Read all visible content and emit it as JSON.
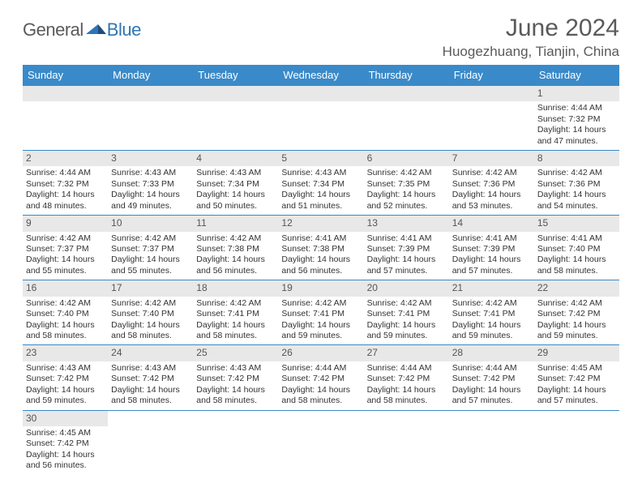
{
  "brand": {
    "part1": "General",
    "part2": "Blue"
  },
  "title": "June 2024",
  "location": "Huogezhuang, Tianjin, China",
  "colors": {
    "header_bg": "#3a8ac9",
    "header_text": "#ffffff",
    "daynum_bg": "#e8e8e8",
    "row_border": "#3a8ac9",
    "title_color": "#5a5a5a",
    "brand_gray": "#5a5a5a",
    "brand_blue": "#2e75b6"
  },
  "weekdays": [
    "Sunday",
    "Monday",
    "Tuesday",
    "Wednesday",
    "Thursday",
    "Friday",
    "Saturday"
  ],
  "weeks": [
    [
      null,
      null,
      null,
      null,
      null,
      null,
      {
        "n": "1",
        "sr": "Sunrise: 4:44 AM",
        "ss": "Sunset: 7:32 PM",
        "dl": "Daylight: 14 hours and 47 minutes."
      }
    ],
    [
      {
        "n": "2",
        "sr": "Sunrise: 4:44 AM",
        "ss": "Sunset: 7:32 PM",
        "dl": "Daylight: 14 hours and 48 minutes."
      },
      {
        "n": "3",
        "sr": "Sunrise: 4:43 AM",
        "ss": "Sunset: 7:33 PM",
        "dl": "Daylight: 14 hours and 49 minutes."
      },
      {
        "n": "4",
        "sr": "Sunrise: 4:43 AM",
        "ss": "Sunset: 7:34 PM",
        "dl": "Daylight: 14 hours and 50 minutes."
      },
      {
        "n": "5",
        "sr": "Sunrise: 4:43 AM",
        "ss": "Sunset: 7:34 PM",
        "dl": "Daylight: 14 hours and 51 minutes."
      },
      {
        "n": "6",
        "sr": "Sunrise: 4:42 AM",
        "ss": "Sunset: 7:35 PM",
        "dl": "Daylight: 14 hours and 52 minutes."
      },
      {
        "n": "7",
        "sr": "Sunrise: 4:42 AM",
        "ss": "Sunset: 7:36 PM",
        "dl": "Daylight: 14 hours and 53 minutes."
      },
      {
        "n": "8",
        "sr": "Sunrise: 4:42 AM",
        "ss": "Sunset: 7:36 PM",
        "dl": "Daylight: 14 hours and 54 minutes."
      }
    ],
    [
      {
        "n": "9",
        "sr": "Sunrise: 4:42 AM",
        "ss": "Sunset: 7:37 PM",
        "dl": "Daylight: 14 hours and 55 minutes."
      },
      {
        "n": "10",
        "sr": "Sunrise: 4:42 AM",
        "ss": "Sunset: 7:37 PM",
        "dl": "Daylight: 14 hours and 55 minutes."
      },
      {
        "n": "11",
        "sr": "Sunrise: 4:42 AM",
        "ss": "Sunset: 7:38 PM",
        "dl": "Daylight: 14 hours and 56 minutes."
      },
      {
        "n": "12",
        "sr": "Sunrise: 4:41 AM",
        "ss": "Sunset: 7:38 PM",
        "dl": "Daylight: 14 hours and 56 minutes."
      },
      {
        "n": "13",
        "sr": "Sunrise: 4:41 AM",
        "ss": "Sunset: 7:39 PM",
        "dl": "Daylight: 14 hours and 57 minutes."
      },
      {
        "n": "14",
        "sr": "Sunrise: 4:41 AM",
        "ss": "Sunset: 7:39 PM",
        "dl": "Daylight: 14 hours and 57 minutes."
      },
      {
        "n": "15",
        "sr": "Sunrise: 4:41 AM",
        "ss": "Sunset: 7:40 PM",
        "dl": "Daylight: 14 hours and 58 minutes."
      }
    ],
    [
      {
        "n": "16",
        "sr": "Sunrise: 4:42 AM",
        "ss": "Sunset: 7:40 PM",
        "dl": "Daylight: 14 hours and 58 minutes."
      },
      {
        "n": "17",
        "sr": "Sunrise: 4:42 AM",
        "ss": "Sunset: 7:40 PM",
        "dl": "Daylight: 14 hours and 58 minutes."
      },
      {
        "n": "18",
        "sr": "Sunrise: 4:42 AM",
        "ss": "Sunset: 7:41 PM",
        "dl": "Daylight: 14 hours and 58 minutes."
      },
      {
        "n": "19",
        "sr": "Sunrise: 4:42 AM",
        "ss": "Sunset: 7:41 PM",
        "dl": "Daylight: 14 hours and 59 minutes."
      },
      {
        "n": "20",
        "sr": "Sunrise: 4:42 AM",
        "ss": "Sunset: 7:41 PM",
        "dl": "Daylight: 14 hours and 59 minutes."
      },
      {
        "n": "21",
        "sr": "Sunrise: 4:42 AM",
        "ss": "Sunset: 7:41 PM",
        "dl": "Daylight: 14 hours and 59 minutes."
      },
      {
        "n": "22",
        "sr": "Sunrise: 4:42 AM",
        "ss": "Sunset: 7:42 PM",
        "dl": "Daylight: 14 hours and 59 minutes."
      }
    ],
    [
      {
        "n": "23",
        "sr": "Sunrise: 4:43 AM",
        "ss": "Sunset: 7:42 PM",
        "dl": "Daylight: 14 hours and 59 minutes."
      },
      {
        "n": "24",
        "sr": "Sunrise: 4:43 AM",
        "ss": "Sunset: 7:42 PM",
        "dl": "Daylight: 14 hours and 58 minutes."
      },
      {
        "n": "25",
        "sr": "Sunrise: 4:43 AM",
        "ss": "Sunset: 7:42 PM",
        "dl": "Daylight: 14 hours and 58 minutes."
      },
      {
        "n": "26",
        "sr": "Sunrise: 4:44 AM",
        "ss": "Sunset: 7:42 PM",
        "dl": "Daylight: 14 hours and 58 minutes."
      },
      {
        "n": "27",
        "sr": "Sunrise: 4:44 AM",
        "ss": "Sunset: 7:42 PM",
        "dl": "Daylight: 14 hours and 58 minutes."
      },
      {
        "n": "28",
        "sr": "Sunrise: 4:44 AM",
        "ss": "Sunset: 7:42 PM",
        "dl": "Daylight: 14 hours and 57 minutes."
      },
      {
        "n": "29",
        "sr": "Sunrise: 4:45 AM",
        "ss": "Sunset: 7:42 PM",
        "dl": "Daylight: 14 hours and 57 minutes."
      }
    ],
    [
      {
        "n": "30",
        "sr": "Sunrise: 4:45 AM",
        "ss": "Sunset: 7:42 PM",
        "dl": "Daylight: 14 hours and 56 minutes."
      },
      null,
      null,
      null,
      null,
      null,
      null
    ]
  ]
}
